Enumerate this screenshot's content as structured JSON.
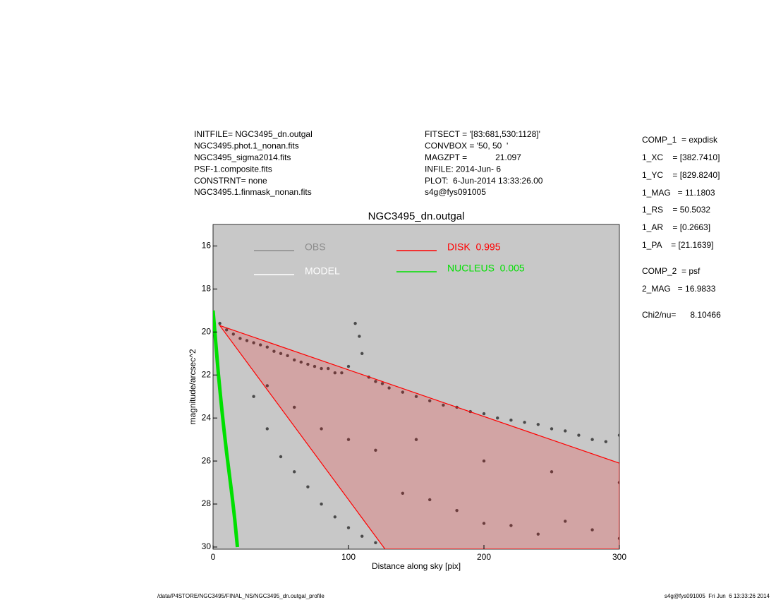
{
  "header": {
    "left": [
      "INITFILE= NGC3495_dn.outgal",
      "NGC3495.phot.1_nonan.fits",
      "NGC3495_sigma2014.fits",
      "PSF-1.composite.fits",
      "CONSTRNT= none",
      "NGC3495.1.finmask_nonan.fits"
    ],
    "middle": [
      "FITSECT = '[83:681,530:1128]'",
      "CONVBOX = '50, 50  '",
      "MAGZPT =            21.097",
      "INFILE: 2014-Jun- 6",
      "PLOT:  6-Jun-2014 13:33:26.00",
      "s4g@fys091005"
    ],
    "right": [
      "COMP_1  = expdisk",
      "1_XC    = [382.7410]",
      "1_YC    = [829.8240]",
      "1_MAG   = 11.1803",
      "1_RS    = 50.5032",
      "1_AR    = [0.2663]",
      "1_PA    = [21.1639]",
      "COMP_2  = psf",
      "2_MAG   = 16.9833",
      "Chi2/nu=      8.10466"
    ]
  },
  "footer": {
    "left": "/data/P4STORE/NGC3495/FINAL_NS/NGC3495_dn.outgal_profile",
    "right": "s4g@fys091005  Fri Jun  6 13:33:26 2014"
  },
  "chart_data": {
    "type": "scatter",
    "title": "NGC3495_dn.outgal",
    "xlabel": "Distance along sky [pix]",
    "ylabel": "magnitude/arcsec^2",
    "xlim": [
      0,
      300
    ],
    "xticks": [
      0,
      100,
      200,
      300
    ],
    "ylim": [
      15,
      30.1
    ],
    "yticks": [
      16,
      18,
      20,
      22,
      24,
      26,
      28,
      30
    ],
    "y_inverted": true,
    "background": "#c8c8c8",
    "legend": [
      {
        "name": "OBS",
        "color": "#8c8c8c"
      },
      {
        "name": "MODEL",
        "color": "#ffffff"
      },
      {
        "name": "DISK  0.995",
        "color": "#ff0000"
      },
      {
        "name": "NUCLEUS  0.005",
        "color": "#00e000"
      }
    ],
    "series": [
      {
        "kind": "points",
        "color": "#4a4a4a",
        "x": [
          5,
          10,
          15,
          20,
          25,
          30,
          35,
          40,
          45,
          50,
          55,
          60,
          65,
          70,
          75,
          80,
          85,
          90,
          95,
          100,
          105,
          108,
          110,
          115,
          120,
          125,
          130,
          140,
          150,
          160,
          170,
          180,
          190,
          200,
          210,
          220,
          230,
          240,
          250,
          260,
          270,
          280,
          290,
          300,
          30,
          40,
          50,
          60,
          70,
          80,
          90,
          100,
          110,
          120,
          140,
          160,
          180,
          200,
          220,
          240,
          260,
          280,
          300,
          40,
          60,
          80,
          100,
          120,
          150,
          200,
          250,
          300
        ],
        "values": [
          19.6,
          19.9,
          20.1,
          20.3,
          20.4,
          20.5,
          20.6,
          20.7,
          20.9,
          21.0,
          21.1,
          21.3,
          21.4,
          21.5,
          21.6,
          21.7,
          21.7,
          21.9,
          21.9,
          21.6,
          19.6,
          20.2,
          21.0,
          22.1,
          22.3,
          22.4,
          22.6,
          22.8,
          23.0,
          23.2,
          23.4,
          23.5,
          23.7,
          23.8,
          24.0,
          24.1,
          24.2,
          24.3,
          24.5,
          24.6,
          24.8,
          25.0,
          25.1,
          24.8,
          23.0,
          24.5,
          25.8,
          26.5,
          27.2,
          28.0,
          28.6,
          29.1,
          29.5,
          29.8,
          27.5,
          27.8,
          28.3,
          28.9,
          29.0,
          29.4,
          28.8,
          29.2,
          29.6,
          22.5,
          23.5,
          24.5,
          25.0,
          25.5,
          25.0,
          26.0,
          26.5,
          27.0
        ]
      },
      {
        "kind": "region",
        "color": "#ff0000",
        "x": [
          5,
          300,
          300,
          127
        ],
        "values": [
          19.7,
          26.1,
          30.1,
          30.1
        ]
      },
      {
        "kind": "band",
        "color": "#00e000",
        "x": [
          0,
          2,
          4,
          6,
          8,
          10,
          12,
          14,
          16,
          18
        ],
        "values": [
          19,
          20.5,
          22,
          23.3,
          24.5,
          25.6,
          26.6,
          27.6,
          28.7,
          30
        ]
      }
    ]
  }
}
